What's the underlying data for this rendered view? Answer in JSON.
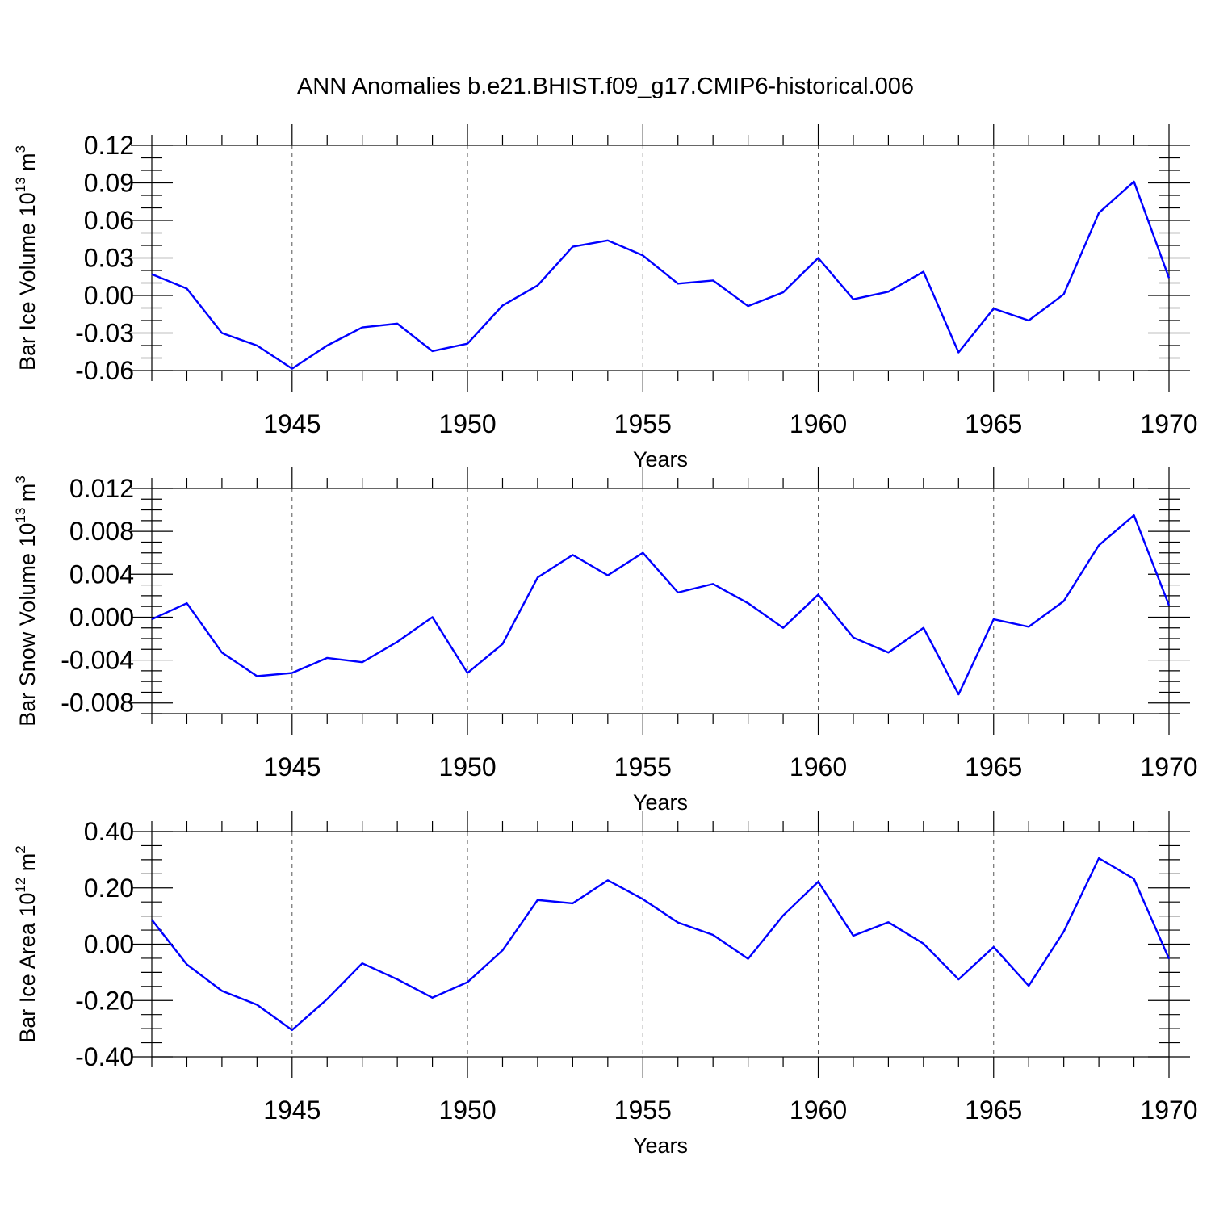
{
  "figure": {
    "title": "ANN Anomalies b.e21.BHIST.f09_g17.CMIP6-historical.006"
  },
  "colors": {
    "line": "#0000ff",
    "axis": "#000000",
    "grid": "#555555"
  },
  "chart_data": [
    {
      "type": "line",
      "title": "",
      "xlabel": "Years",
      "ylabel": {
        "base": "Bar Ice Volume 10",
        "sup1": "13",
        "mid": " m",
        "sup2": "3"
      },
      "xlim": [
        1941,
        1970
      ],
      "ylim": [
        -0.06,
        0.12
      ],
      "yticks": [
        -0.06,
        -0.03,
        0.0,
        0.03,
        0.06,
        0.09,
        0.12
      ],
      "ytick_labels": [
        "-0.06",
        "-0.03",
        "0.00",
        "0.03",
        "0.06",
        "0.09",
        "0.12"
      ],
      "yminor_step": 0.01,
      "xticks": [
        1945,
        1950,
        1955,
        1960,
        1965,
        1970
      ],
      "xtick_labels": [
        "1945",
        "1950",
        "1955",
        "1960",
        "1965",
        "1970"
      ],
      "xgrid": [
        1945,
        1950,
        1955,
        1960,
        1965
      ],
      "x": [
        1941,
        1942,
        1943,
        1944,
        1945,
        1946,
        1947,
        1948,
        1949,
        1950,
        1951,
        1952,
        1953,
        1954,
        1955,
        1956,
        1957,
        1958,
        1959,
        1960,
        1961,
        1962,
        1963,
        1964,
        1965,
        1966,
        1967,
        1968,
        1969,
        1970
      ],
      "series": [
        {
          "values": [
            0.017,
            0.0055,
            -0.03,
            -0.04,
            -0.0585,
            -0.04,
            -0.0255,
            -0.0225,
            -0.0445,
            -0.0385,
            -0.008,
            0.008,
            0.039,
            0.044,
            0.032,
            0.0095,
            0.012,
            -0.0085,
            0.0025,
            0.03,
            -0.003,
            0.003,
            0.019,
            -0.0455,
            -0.0105,
            -0.02,
            0.001,
            0.066,
            0.091,
            0.014
          ]
        }
      ]
    },
    {
      "type": "line",
      "title": "",
      "xlabel": "Years",
      "ylabel": {
        "base": "Bar Snow Volume 10",
        "sup1": "13",
        "mid": " m",
        "sup2": "3"
      },
      "xlim": [
        1941,
        1970
      ],
      "ylim": [
        -0.009,
        0.012
      ],
      "yticks": [
        -0.008,
        -0.004,
        0.0,
        0.004,
        0.008,
        0.012
      ],
      "ytick_labels": [
        "-0.008",
        "-0.004",
        "0.000",
        "0.004",
        "0.008",
        "0.012"
      ],
      "yminor_step": 0.001,
      "xticks": [
        1945,
        1950,
        1955,
        1960,
        1965,
        1970
      ],
      "xtick_labels": [
        "1945",
        "1950",
        "1955",
        "1960",
        "1965",
        "1970"
      ],
      "xgrid": [
        1945,
        1950,
        1955,
        1960,
        1965
      ],
      "x": [
        1941,
        1942,
        1943,
        1944,
        1945,
        1946,
        1947,
        1948,
        1949,
        1950,
        1951,
        1952,
        1953,
        1954,
        1955,
        1956,
        1957,
        1958,
        1959,
        1960,
        1961,
        1962,
        1963,
        1964,
        1965,
        1966,
        1967,
        1968,
        1969,
        1970
      ],
      "series": [
        {
          "values": [
            -0.0002,
            0.0013,
            -0.0033,
            -0.0055,
            -0.0052,
            -0.0038,
            -0.0042,
            -0.0023,
            0.0,
            -0.0052,
            -0.0025,
            0.0037,
            0.0058,
            0.0039,
            0.006,
            0.0023,
            0.0031,
            0.0013,
            -0.001,
            0.0021,
            -0.0019,
            -0.0033,
            -0.001,
            -0.0072,
            -0.0002,
            -0.0009,
            0.0015,
            0.0067,
            0.0095,
            0.0011
          ]
        }
      ]
    },
    {
      "type": "line",
      "title": "",
      "xlabel": "Years",
      "ylabel": {
        "base": "Bar Ice Area 10",
        "sup1": "12",
        "mid": " m",
        "sup2": "2"
      },
      "xlim": [
        1941,
        1970
      ],
      "ylim": [
        -0.4,
        0.4
      ],
      "yticks": [
        -0.4,
        -0.2,
        0.0,
        0.2,
        0.4
      ],
      "ytick_labels": [
        "-0.40",
        "-0.20",
        "0.00",
        "0.20",
        "0.40"
      ],
      "yminor_step": 0.05,
      "xticks": [
        1945,
        1950,
        1955,
        1960,
        1965,
        1970
      ],
      "xtick_labels": [
        "1945",
        "1950",
        "1955",
        "1960",
        "1965",
        "1970"
      ],
      "xgrid": [
        1945,
        1950,
        1955,
        1960,
        1965
      ],
      "x": [
        1941,
        1942,
        1943,
        1944,
        1945,
        1946,
        1947,
        1948,
        1949,
        1950,
        1951,
        1952,
        1953,
        1954,
        1955,
        1956,
        1957,
        1958,
        1959,
        1960,
        1961,
        1962,
        1963,
        1964,
        1965,
        1966,
        1967,
        1968,
        1969,
        1970
      ],
      "series": [
        {
          "values": [
            0.087,
            -0.072,
            -0.166,
            -0.215,
            -0.305,
            -0.195,
            -0.068,
            -0.125,
            -0.19,
            -0.135,
            -0.022,
            0.157,
            0.145,
            0.227,
            0.16,
            0.077,
            0.033,
            -0.052,
            0.102,
            0.222,
            0.03,
            0.078,
            0.002,
            -0.125,
            -0.01,
            -0.148,
            0.045,
            0.305,
            0.232,
            -0.052
          ]
        }
      ]
    }
  ]
}
